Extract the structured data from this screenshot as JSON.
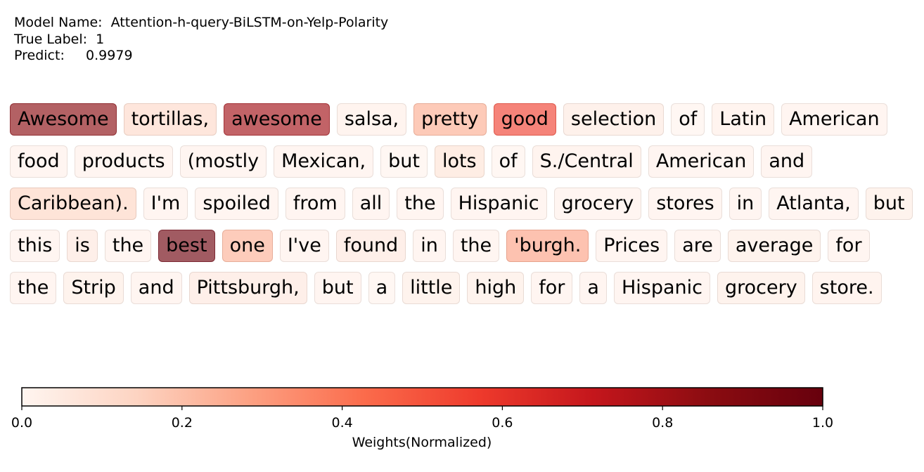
{
  "header": {
    "model_label": "Model Name:",
    "model_value": "Attention-h-query-BiLSTM-on-Yelp-Polarity",
    "true_label_label": "True Label:",
    "true_label_value": "1",
    "predict_label": "Predict:",
    "predict_value": "0.9979"
  },
  "chart_data": {
    "type": "heatmap",
    "title": "",
    "colormap": "Reds",
    "colorbar": {
      "xlabel": "Weights(Normalized)",
      "ticks": [
        "0.0",
        "0.2",
        "0.4",
        "0.6",
        "0.8",
        "1.0"
      ],
      "range": [
        0.0,
        1.0
      ],
      "colors": [
        "#fff5f0",
        "#fdd4c2",
        "#fca082",
        "#fb6b4b",
        "#ee3a2c",
        "#c4161c",
        "#8b0c11",
        "#67000d"
      ]
    },
    "tokens": [
      {
        "text": "Awesome",
        "weight": 0.86
      },
      {
        "text": "tortillas,",
        "weight": 0.12
      },
      {
        "text": "awesome",
        "weight": 0.8
      },
      {
        "text": "salsa,",
        "weight": 0.03
      },
      {
        "text": "pretty",
        "weight": 0.25
      },
      {
        "text": "good",
        "weight": 0.55
      },
      {
        "text": "selection",
        "weight": 0.05
      },
      {
        "text": "of",
        "weight": 0.01
      },
      {
        "text": "Latin",
        "weight": 0.03
      },
      {
        "text": "American",
        "weight": 0.02
      },
      {
        "text": "food",
        "weight": 0.02
      },
      {
        "text": "products",
        "weight": 0.02
      },
      {
        "text": "(mostly",
        "weight": 0.02
      },
      {
        "text": "Mexican,",
        "weight": 0.02
      },
      {
        "text": "but",
        "weight": 0.01
      },
      {
        "text": "lots",
        "weight": 0.08
      },
      {
        "text": "of",
        "weight": 0.01
      },
      {
        "text": "S./Central",
        "weight": 0.03
      },
      {
        "text": "American",
        "weight": 0.02
      },
      {
        "text": "and",
        "weight": 0.02
      },
      {
        "text": "Caribbean).",
        "weight": 0.14
      },
      {
        "text": "I'm",
        "weight": 0.02
      },
      {
        "text": "spoiled",
        "weight": 0.02
      },
      {
        "text": "from",
        "weight": 0.02
      },
      {
        "text": "all",
        "weight": 0.02
      },
      {
        "text": "the",
        "weight": 0.02
      },
      {
        "text": "Hispanic",
        "weight": 0.02
      },
      {
        "text": "grocery",
        "weight": 0.02
      },
      {
        "text": "stores",
        "weight": 0.02
      },
      {
        "text": "in",
        "weight": 0.02
      },
      {
        "text": "Atlanta,",
        "weight": 0.02
      },
      {
        "text": "but",
        "weight": 0.04
      },
      {
        "text": "this",
        "weight": 0.02
      },
      {
        "text": "is",
        "weight": 0.06
      },
      {
        "text": "the",
        "weight": 0.02
      },
      {
        "text": "best",
        "weight": 0.97
      },
      {
        "text": "one",
        "weight": 0.24
      },
      {
        "text": "I've",
        "weight": 0.02
      },
      {
        "text": "found",
        "weight": 0.06
      },
      {
        "text": "in",
        "weight": 0.02
      },
      {
        "text": "the",
        "weight": 0.02
      },
      {
        "text": "'burgh.",
        "weight": 0.28
      },
      {
        "text": "Prices",
        "weight": 0.02
      },
      {
        "text": "are",
        "weight": 0.02
      },
      {
        "text": "average",
        "weight": 0.04
      },
      {
        "text": "for",
        "weight": 0.02
      },
      {
        "text": "the",
        "weight": 0.02
      },
      {
        "text": "Strip",
        "weight": 0.04
      },
      {
        "text": "and",
        "weight": 0.02
      },
      {
        "text": "Pittsburgh,",
        "weight": 0.06
      },
      {
        "text": "but",
        "weight": 0.02
      },
      {
        "text": "a",
        "weight": 0.01
      },
      {
        "text": "little",
        "weight": 0.04
      },
      {
        "text": "high",
        "weight": 0.04
      },
      {
        "text": "for",
        "weight": 0.02
      },
      {
        "text": "a",
        "weight": 0.02
      },
      {
        "text": "Hispanic",
        "weight": 0.02
      },
      {
        "text": "grocery",
        "weight": 0.04
      },
      {
        "text": "store.",
        "weight": 0.03
      }
    ]
  }
}
